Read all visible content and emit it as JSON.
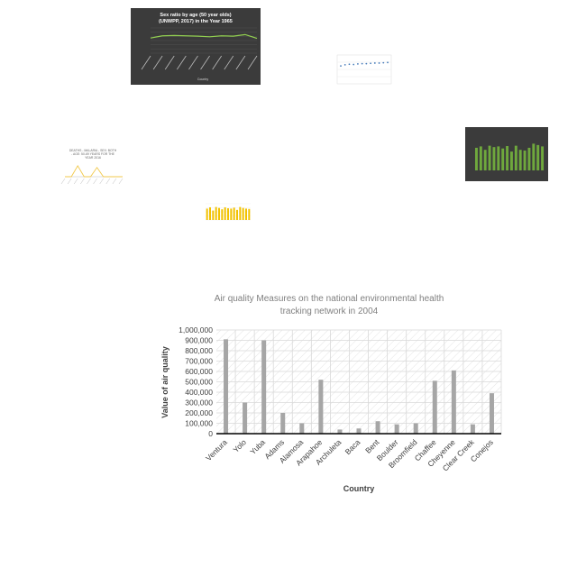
{
  "thumbnails": [
    {
      "title_line1": "Sex ratio by age (50 year olds)",
      "title_line2": "(UNWPP, 2017) in the Year 1965",
      "xlabel": "Country",
      "chart_data": {
        "type": "line",
        "values": [
          48,
          55,
          56,
          55,
          54,
          52,
          55,
          54,
          59,
          47
        ],
        "ylim": [
          0,
          80
        ]
      }
    },
    {
      "chart_data": {
        "type": "scatter",
        "values": [
          62,
          66,
          68,
          67,
          69,
          70,
          70,
          71,
          72,
          72,
          73,
          74
        ],
        "ylim": [
          0,
          100
        ]
      }
    },
    {
      "chart_data": {
        "type": "bar",
        "values": [
          66,
          70,
          60,
          72,
          68,
          70,
          64,
          71,
          55,
          72,
          60,
          58,
          66,
          78,
          74,
          70
        ],
        "ylim": [
          0,
          100
        ]
      }
    },
    {
      "title_line1": "DEATHS - MALARIA - SEX: BOTH",
      "title_line2": "- AGE: 50-69 YEARS FOR THE",
      "title_line3": "YEAR 2016",
      "chart_data": {
        "type": "line",
        "values": [
          0,
          0,
          38,
          0,
          0,
          32,
          0,
          0,
          0,
          0
        ],
        "ylim": [
          0,
          50
        ]
      }
    },
    {
      "chart_data": {
        "type": "bar",
        "values": [
          70,
          78,
          58,
          80,
          74,
          66,
          78,
          72,
          70,
          76,
          62,
          80,
          74,
          70,
          68
        ],
        "ylim": [
          0,
          100
        ]
      }
    }
  ],
  "main": {
    "chart_data": {
      "type": "bar",
      "title_line1": "Air quality Measures on the national environmental health",
      "title_line2": "tracking network in 2004",
      "xlabel": "Country",
      "ylabel": "Value of air quality",
      "categories": [
        "Ventura",
        "Yolo",
        "Yuba",
        "Adams",
        "Alamosa",
        "Arapahoe",
        "Archuleta",
        "Baca",
        "Bent",
        "Boulder",
        "Broomfield",
        "Chaffee",
        "Cheyenne",
        "Clear Creek",
        "Conejos"
      ],
      "values": [
        910000,
        300000,
        900000,
        200000,
        100000,
        520000,
        40000,
        50000,
        120000,
        90000,
        100000,
        510000,
        610000,
        90000,
        390000
      ],
      "ylim": [
        0,
        1000000
      ],
      "ticks": [
        "0",
        "100,000",
        "200,000",
        "300,000",
        "400,000",
        "500,000",
        "600,000",
        "700,000",
        "800,000",
        "900,000",
        "1,000,000"
      ],
      "bar_color": "#a6a6a6",
      "grid": true
    }
  }
}
